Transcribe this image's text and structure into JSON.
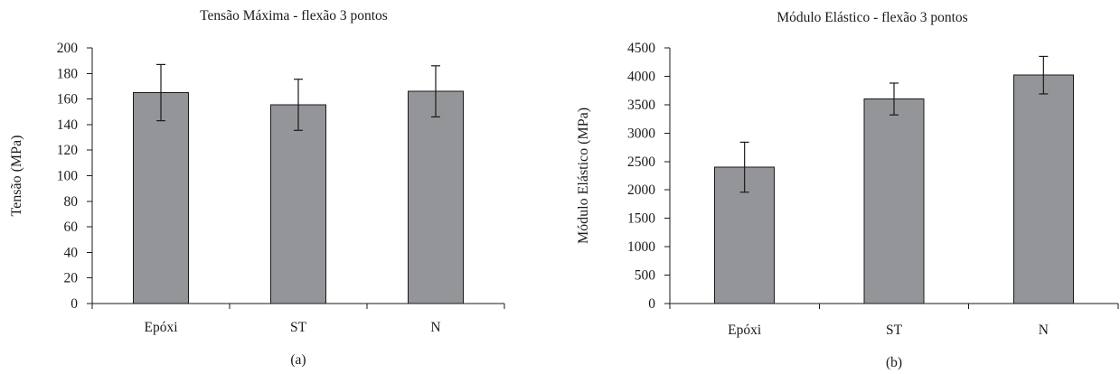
{
  "chart_data": [
    {
      "type": "bar",
      "title": "Tensão Máxima - flexão 3 pontos",
      "ylabel": "Tensão (MPa)",
      "xlabel": "",
      "caption": "(a)",
      "categories": [
        "Epóxi",
        "ST",
        "N"
      ],
      "values": [
        165,
        155.5,
        166
      ],
      "errors": [
        22,
        20,
        20
      ],
      "ylim": [
        0,
        200
      ],
      "yticks": [
        "0",
        "20",
        "40",
        "60",
        "80",
        "100",
        "120",
        "140",
        "160",
        "180",
        "200"
      ],
      "bar_color": "#939598",
      "grid": false,
      "legend": "none"
    },
    {
      "type": "bar",
      "title": "Módulo Elástico - flexão 3 pontos",
      "ylabel": "Módulo Elástico (MPa)",
      "xlabel": "",
      "caption": "(b)",
      "categories": [
        "Epóxi",
        "ST",
        "N"
      ],
      "values": [
        2400,
        3600,
        4020
      ],
      "errors": [
        440,
        280,
        330
      ],
      "ylim": [
        0,
        4500
      ],
      "yticks": [
        "0",
        "500",
        "1000",
        "1500",
        "2000",
        "2500",
        "3000",
        "3500",
        "4000",
        "4500"
      ],
      "bar_color": "#939598",
      "grid": false,
      "legend": "none"
    }
  ]
}
